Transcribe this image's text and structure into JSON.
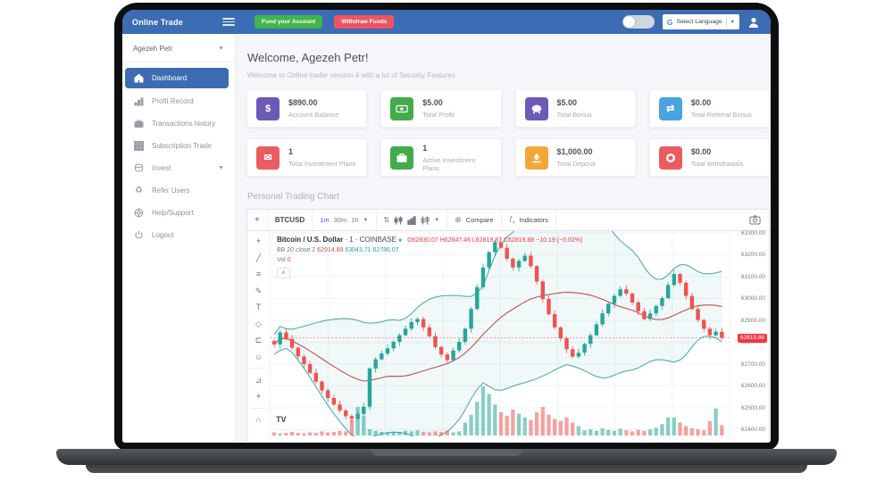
{
  "header": {
    "brand": "Online Trade",
    "fund_button": "Fund your Account",
    "withdraw_button": "Withdraw Funds",
    "language_label": "Select Language",
    "google_g": "G"
  },
  "sidebar": {
    "user": "Agezeh Petr",
    "items": [
      {
        "label": "Dashboard",
        "icon": "home-icon",
        "active": true
      },
      {
        "label": "Profit Record",
        "icon": "bar-chart-icon",
        "active": false
      },
      {
        "label": "Transactions history",
        "icon": "briefcase-icon",
        "active": false
      },
      {
        "label": "Subscription Trade",
        "icon": "grid-icon",
        "active": false
      },
      {
        "label": "Invest",
        "icon": "coins-icon",
        "active": false,
        "has_submenu": true
      },
      {
        "label": "Refer Users",
        "icon": "refer-icon",
        "active": false
      },
      {
        "label": "Help/Support",
        "icon": "support-icon",
        "active": false
      },
      {
        "label": "Logout",
        "icon": "power-icon",
        "active": false
      }
    ]
  },
  "welcome": {
    "title": "Welcome, Agezeh Petr!",
    "subtitle": "Welcome to Online trader version 4 with a lot of Security Features"
  },
  "stats": [
    {
      "value": "$890.00",
      "label": "Account Balance",
      "icon": "dollar-icon",
      "color": "#6c5ab7"
    },
    {
      "value": "$5.00",
      "label": "Total Profit",
      "icon": "cash-icon",
      "color": "#43ab4a"
    },
    {
      "value": "$5.00",
      "label": "Total Bonus",
      "icon": "piggy-icon",
      "color": "#6c5ab7"
    },
    {
      "value": "$0.00",
      "label": "Total Referral Bonus",
      "icon": "exchange-icon",
      "color": "#4aa3df"
    },
    {
      "value": "1",
      "label": "Total Investment Plans",
      "icon": "envelope-icon",
      "color": "#ec5b62"
    },
    {
      "value": "1",
      "label": "Active Investment Plans",
      "icon": "briefcase-icon",
      "color": "#43ab4a"
    },
    {
      "value": "$1,000.00",
      "label": "Total Deposit",
      "icon": "upload-icon",
      "color": "#f3a73b"
    },
    {
      "value": "$0.00",
      "label": "Total Withdrawals",
      "icon": "ring-icon",
      "color": "#ec5b62"
    }
  ],
  "section_title": "Personal Trading Chart",
  "chart_toolbar": {
    "symbol": "BTCUSD",
    "timeframes": [
      "1m",
      "30m",
      "1h"
    ],
    "active_timeframe": "1m",
    "compare_label": "Compare",
    "indicators_label": "Indicators"
  },
  "tools": [
    {
      "name": "crosshair-tool",
      "glyph": "+"
    },
    {
      "name": "trend-line-tool",
      "glyph": "╱"
    },
    {
      "name": "fib-tool",
      "glyph": "≡"
    },
    {
      "name": "brush-tool",
      "glyph": "✎"
    },
    {
      "name": "text-tool",
      "glyph": "T"
    },
    {
      "name": "pattern-tool",
      "glyph": "◇"
    },
    {
      "name": "position-tool",
      "glyph": "⊏"
    },
    {
      "name": "emoji-tool",
      "glyph": "☺"
    },
    {
      "name": "measure-tool",
      "glyph": "⊿"
    },
    {
      "name": "zoom-in-tool",
      "glyph": "⌖"
    },
    {
      "name": "magnet-tool",
      "glyph": "∩"
    }
  ],
  "chart_data": {
    "type": "candlestick",
    "symbol": "BTCUSD",
    "title": "Bitcoin / U.S. Dollar",
    "interval": "1",
    "exchange": "COINBASE",
    "legend": {
      "title": "Bitcoin / U.S. Dollar",
      "meta": "· 1 · COINBASE",
      "ohlc_text": "O62830.07 H62847.46 L62819.87 C62819.88 −10.19 (−0.02%)",
      "bb_label": "BB 20 close 2",
      "bb_basis": "62914.89",
      "bb_upper": "63043.71",
      "bb_lower": "62786.07",
      "vol_label": "Vol",
      "vol_value": "0",
      "collapse_glyph": "∧",
      "tv_logo": "TV"
    },
    "ylim": [
      62400,
      63300
    ],
    "y_ticks": [
      "63300.00",
      "63200.00",
      "63100.00",
      "63000.00",
      "62900.00",
      "62800.00",
      "62700.00",
      "62600.00",
      "62500.00",
      "62400.00"
    ],
    "current_price": 62819.88,
    "current_price_label": "62819.88",
    "bollinger": {
      "window": 20,
      "mult": 2
    },
    "closes": [
      62790,
      62845,
      62815,
      62775,
      62735,
      62700,
      62660,
      62620,
      62580,
      62545,
      62515,
      62488,
      62462,
      62450,
      62472,
      62505,
      62680,
      62722,
      62748,
      62772,
      62802,
      62832,
      62862,
      62892,
      62906,
      62868,
      62828,
      62778,
      62744,
      62718,
      62762,
      62802,
      62862,
      62952,
      63052,
      63142,
      63212,
      63258,
      63232,
      63182,
      63142,
      63172,
      63196,
      63148,
      63078,
      62998,
      62928,
      62868,
      62818,
      62768,
      62734,
      62752,
      62792,
      62832,
      62882,
      62932,
      62976,
      63012,
      63042,
      63022,
      62982,
      62942,
      62906,
      62932,
      62966,
      63002,
      63062,
      63112,
      63072,
      63012,
      62952,
      62902,
      62862,
      62832,
      62848,
      62820
    ],
    "volumes": [
      6,
      4,
      5,
      7,
      5,
      4,
      6,
      5,
      8,
      6,
      7,
      9,
      8,
      30,
      55,
      38,
      12,
      9,
      7,
      6,
      8,
      7,
      9,
      8,
      10,
      7,
      6,
      8,
      7,
      9,
      6,
      8,
      25,
      40,
      65,
      95,
      80,
      60,
      45,
      38,
      50,
      42,
      35,
      30,
      45,
      55,
      40,
      32,
      28,
      35,
      25,
      18,
      10,
      12,
      9,
      14,
      11,
      9,
      13,
      10,
      8,
      11,
      9,
      12,
      15,
      22,
      35,
      35,
      25,
      18,
      14,
      12,
      10,
      28,
      52,
      20
    ],
    "colors": {
      "up": "#26a69a",
      "down": "#ef5350",
      "bb_band": "#3fa9a0",
      "bb_basis": "#c0514d",
      "bb_fill": "rgba(63,169,160,0.08)",
      "price_line": "#f23645",
      "grid": "#f0f3fa"
    }
  }
}
